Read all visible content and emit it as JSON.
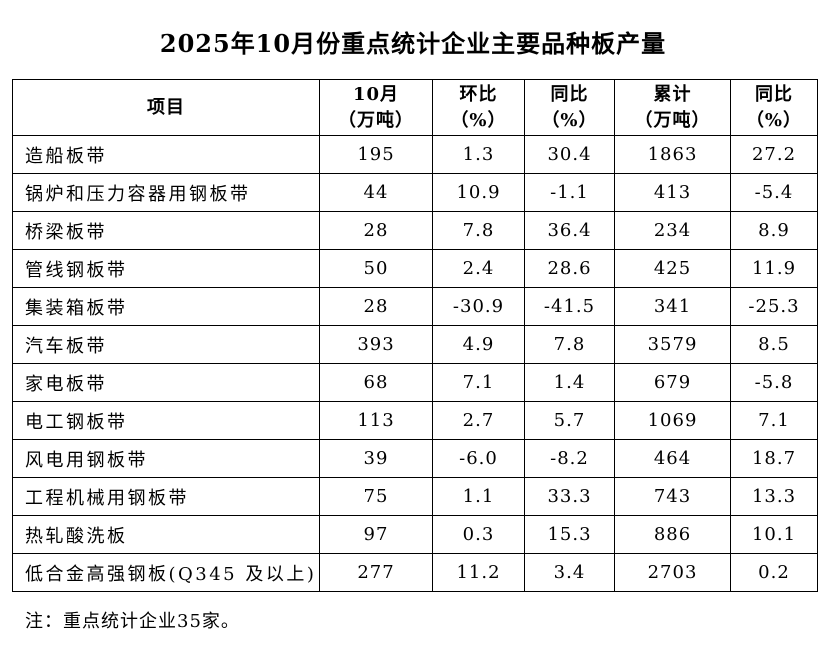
{
  "page": {
    "title": "2025年10月份重点统计企业主要品种板产量",
    "note": "注：重点统计企业35家。"
  },
  "table": {
    "headers": [
      {
        "lines": [
          "项目"
        ]
      },
      {
        "lines": [
          "10月",
          "（万吨）"
        ]
      },
      {
        "lines": [
          "环比",
          "（%）"
        ]
      },
      {
        "lines": [
          "同比",
          "（%）"
        ]
      },
      {
        "lines": [
          "累计",
          "（万吨）"
        ]
      },
      {
        "lines": [
          "同比",
          "（%）"
        ]
      }
    ],
    "rows": [
      {
        "name": "造船板带",
        "values": [
          "195",
          "1.3",
          "30.4",
          "1863",
          "27.2"
        ]
      },
      {
        "name": "锅炉和压力容器用钢板带",
        "values": [
          "44",
          "10.9",
          "-1.1",
          "413",
          "-5.4"
        ]
      },
      {
        "name": "桥梁板带",
        "values": [
          "28",
          "7.8",
          "36.4",
          "234",
          "8.9"
        ]
      },
      {
        "name": "管线钢板带",
        "values": [
          "50",
          "2.4",
          "28.6",
          "425",
          "11.9"
        ]
      },
      {
        "name": "集装箱板带",
        "values": [
          "28",
          "-30.9",
          "-41.5",
          "341",
          "-25.3"
        ]
      },
      {
        "name": "汽车板带",
        "values": [
          "393",
          "4.9",
          "7.8",
          "3579",
          "8.5"
        ]
      },
      {
        "name": "家电板带",
        "values": [
          "68",
          "7.1",
          "1.4",
          "679",
          "-5.8"
        ]
      },
      {
        "name": "电工钢板带",
        "values": [
          "113",
          "2.7",
          "5.7",
          "1069",
          "7.1"
        ]
      },
      {
        "name": "风电用钢板带",
        "values": [
          "39",
          "-6.0",
          "-8.2",
          "464",
          "18.7"
        ]
      },
      {
        "name": "工程机械用钢板带",
        "values": [
          "75",
          "1.1",
          "33.3",
          "743",
          "13.3"
        ]
      },
      {
        "name": "热轧酸洗板",
        "values": [
          "97",
          "0.3",
          "15.3",
          "886",
          "10.1"
        ]
      },
      {
        "name": "低合金高强钢板(Q345 及以上)",
        "values": [
          "277",
          "11.2",
          "3.4",
          "2703",
          "0.2"
        ]
      }
    ]
  },
  "chart_data": {
    "type": "table",
    "title": "2025年10月份重点统计企业主要品种板产量",
    "columns": [
      "项目",
      "10月（万吨）",
      "环比（%）",
      "同比（%）",
      "累计（万吨）",
      "同比（%）"
    ],
    "rows": [
      [
        "造船板带",
        195,
        1.3,
        30.4,
        1863,
        27.2
      ],
      [
        "锅炉和压力容器用钢板带",
        44,
        10.9,
        -1.1,
        413,
        -5.4
      ],
      [
        "桥梁板带",
        28,
        7.8,
        36.4,
        234,
        8.9
      ],
      [
        "管线钢板带",
        50,
        2.4,
        28.6,
        425,
        11.9
      ],
      [
        "集装箱板带",
        28,
        -30.9,
        -41.5,
        341,
        -25.3
      ],
      [
        "汽车板带",
        393,
        4.9,
        7.8,
        3579,
        8.5
      ],
      [
        "家电板带",
        68,
        7.1,
        1.4,
        679,
        -5.8
      ],
      [
        "电工钢板带",
        113,
        2.7,
        5.7,
        1069,
        7.1
      ],
      [
        "风电用钢板带",
        39,
        -6.0,
        -8.2,
        464,
        18.7
      ],
      [
        "工程机械用钢板带",
        75,
        1.1,
        33.3,
        743,
        13.3
      ],
      [
        "热轧酸洗板",
        97,
        0.3,
        15.3,
        886,
        10.1
      ],
      [
        "低合金高强钢板(Q345 及以上)",
        277,
        11.2,
        3.4,
        2703,
        0.2
      ]
    ],
    "note": "注：重点统计企业35家。"
  }
}
